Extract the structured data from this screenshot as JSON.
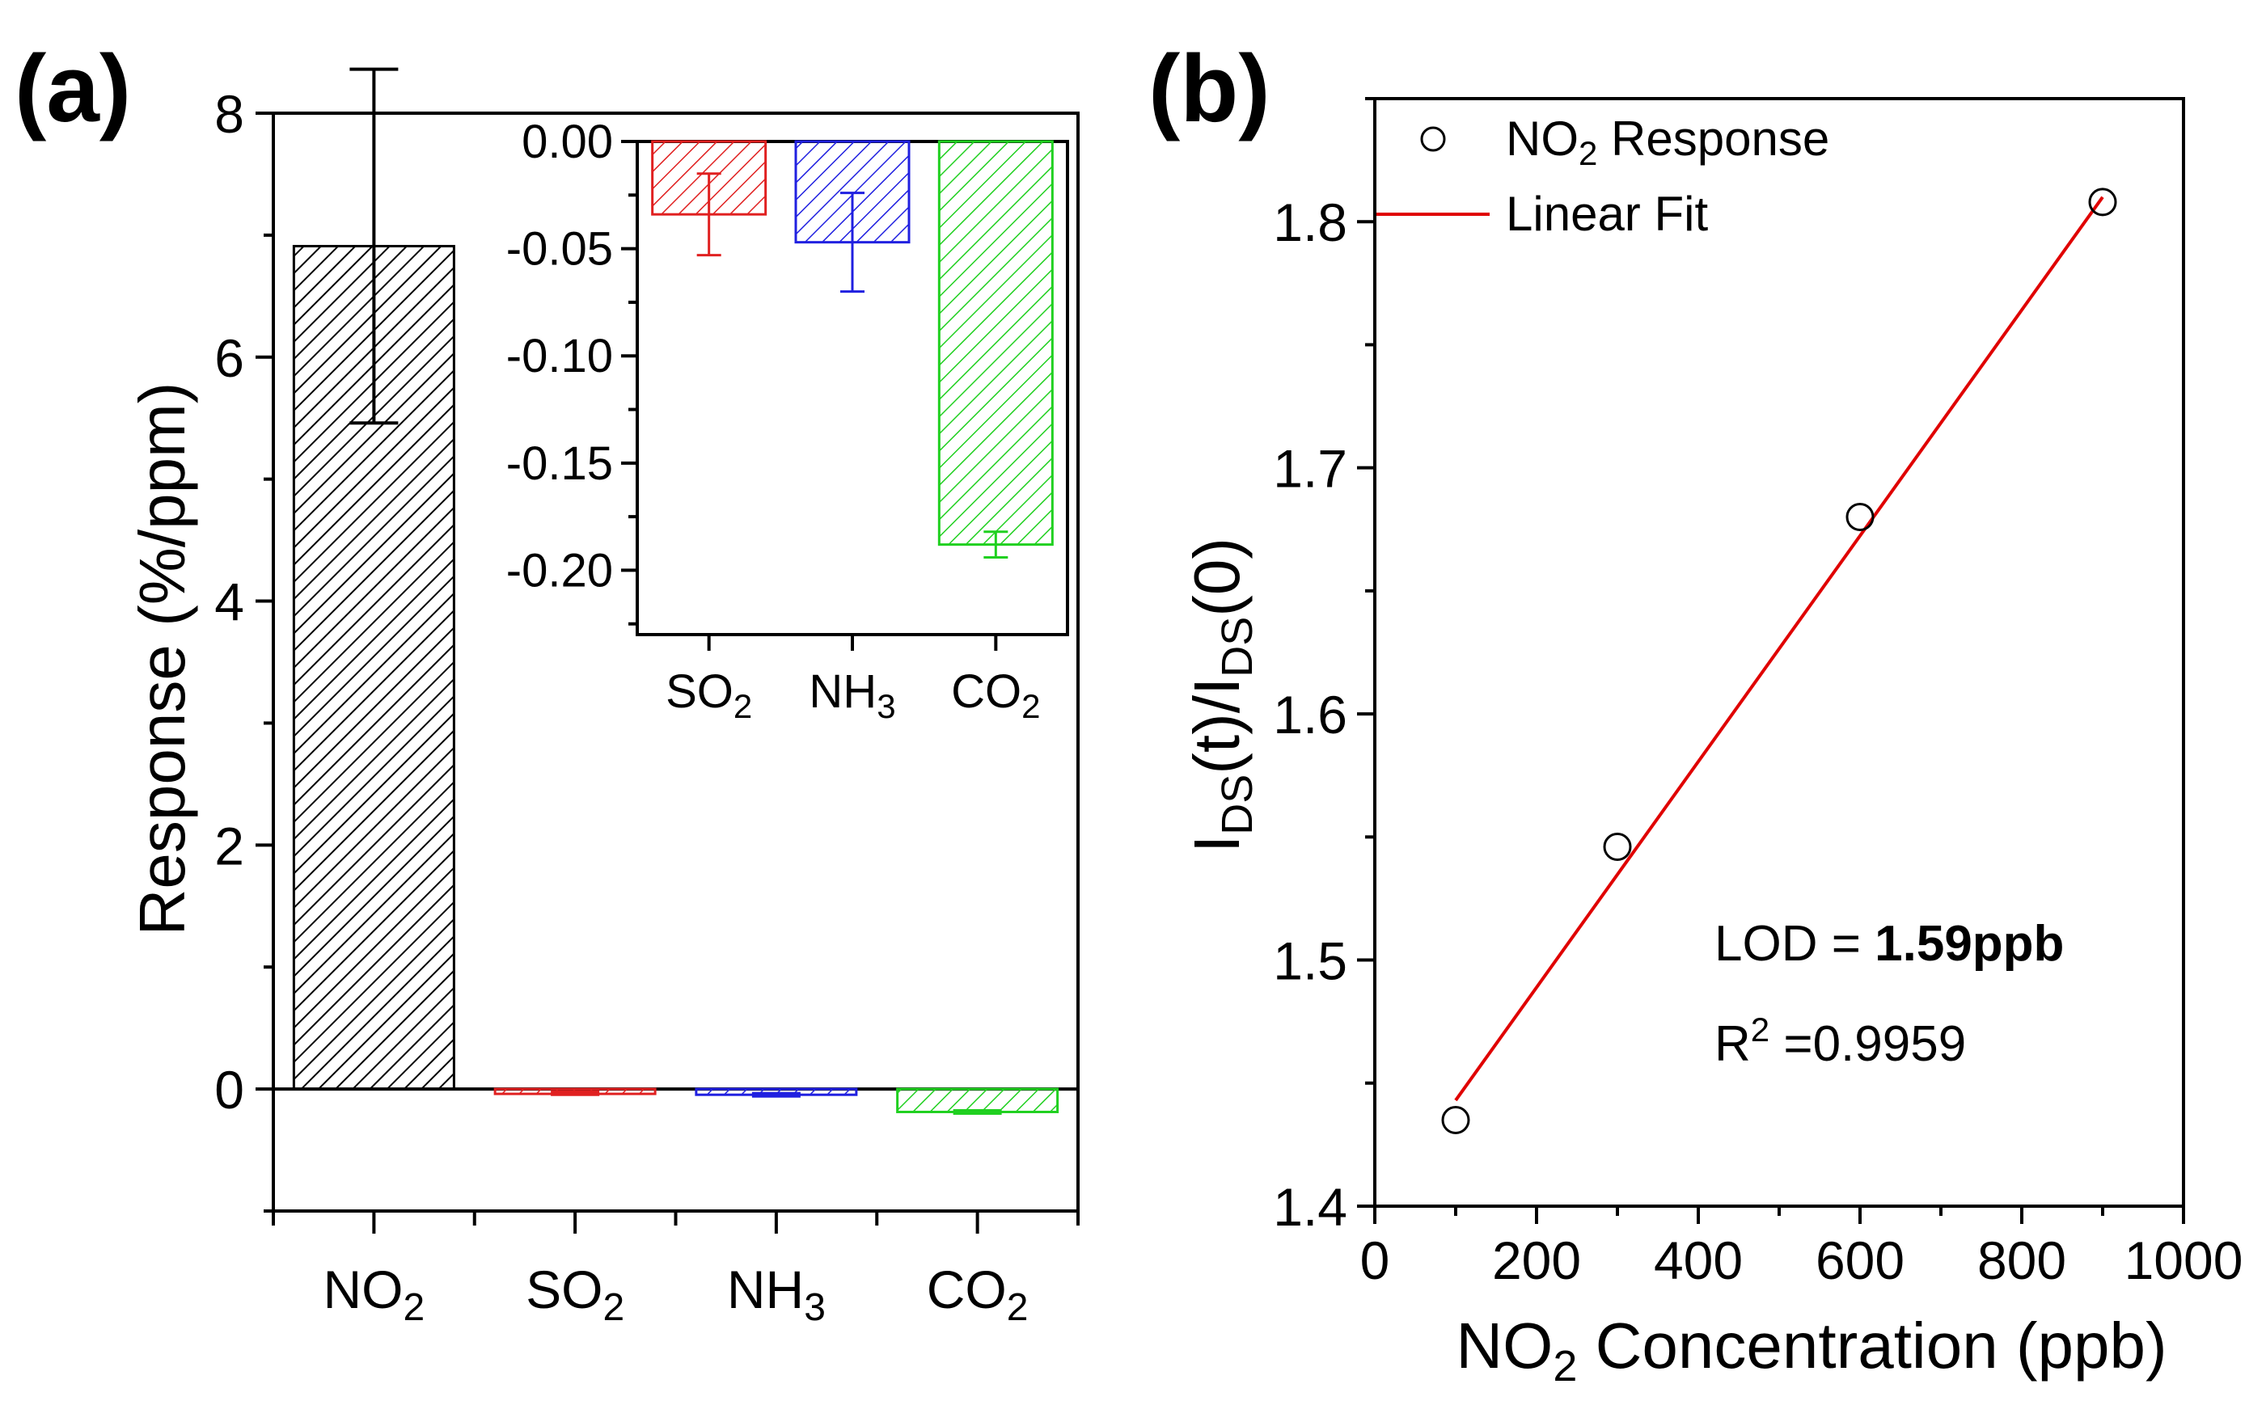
{
  "chart_data": [
    {
      "panel": "(a)",
      "type": "bar",
      "ylabel": "Response (%/ppm)",
      "xlabel": "",
      "ylim": [
        -1,
        8
      ],
      "yticks": [
        "0",
        "2",
        "4",
        "6",
        "8"
      ],
      "categories": [
        {
          "base": "NO",
          "sub": "2"
        },
        {
          "base": "SO",
          "sub": "2"
        },
        {
          "base": "NH",
          "sub": "3"
        },
        {
          "base": "CO",
          "sub": "2"
        }
      ],
      "values": [
        6.91,
        -0.034,
        -0.047,
        -0.188
      ],
      "errors": [
        1.45,
        0.019,
        0.023,
        0.006
      ],
      "colors": [
        "#000000",
        "#e02020",
        "#2020e0",
        "#20d020"
      ],
      "pattern": "diagonal hatch",
      "inset": {
        "type": "bar",
        "ylim": [
          -0.23,
          0.0
        ],
        "yticks": [
          "0.00",
          "-0.05",
          "-0.10",
          "-0.15",
          "-0.20"
        ],
        "categories": [
          {
            "base": "SO",
            "sub": "2"
          },
          {
            "base": "NH",
            "sub": "3"
          },
          {
            "base": "CO",
            "sub": "2"
          }
        ],
        "values": [
          -0.034,
          -0.047,
          -0.188
        ],
        "errors": [
          0.019,
          0.023,
          0.006
        ],
        "colors": [
          "#e02020",
          "#2020e0",
          "#20d020"
        ]
      }
    },
    {
      "panel": "(b)",
      "type": "scatter",
      "xlabel": {
        "pre": "NO",
        "sub": "2",
        "post": " Concentration (ppb)"
      },
      "ylabel": "I_DS(t)/I_DS(0)",
      "xlim": [
        0,
        1000
      ],
      "ylim": [
        1.4,
        1.85
      ],
      "xticks": [
        "0",
        "200",
        "400",
        "600",
        "800",
        "1000"
      ],
      "yticks": [
        "1.4",
        "1.5",
        "1.6",
        "1.7",
        "1.8"
      ],
      "series": [
        {
          "name": "NO2 Response",
          "x": [
            100,
            300,
            600,
            900
          ],
          "y": [
            1.435,
            1.546,
            1.68,
            1.808
          ],
          "marker": "open-circle",
          "color": "#000000"
        },
        {
          "name": "Linear Fit",
          "x": [
            100,
            900
          ],
          "y": [
            1.443,
            1.81
          ],
          "style": "line",
          "color": "#e00000"
        }
      ],
      "legend": {
        "position": "top-left",
        "entries": [
          {
            "pre": "NO",
            "sub": "2",
            "post": " Response"
          },
          {
            "pre": "Linear Fit",
            "sub": "",
            "post": ""
          }
        ]
      },
      "annotations": {
        "lod_prefix": "LOD = ",
        "lod_value": "1.59ppb",
        "r2_label": "R",
        "r2_sup": "2",
        "r2_value": " =0.9959"
      }
    }
  ]
}
